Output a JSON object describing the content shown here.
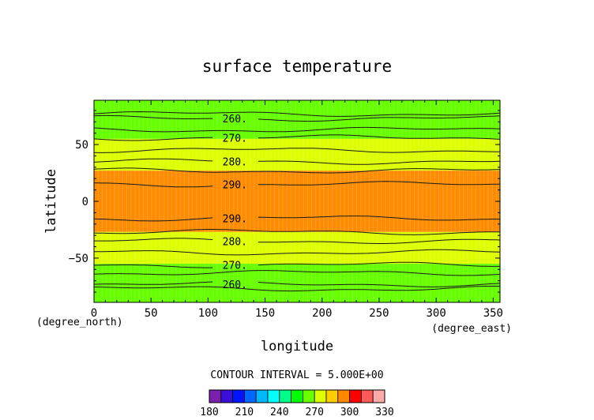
{
  "chart_data": {
    "type": "contour",
    "title": "surface temperature",
    "xlabel": "longitude",
    "ylabel": "latitude",
    "x_unit": "(degree_east)",
    "y_unit": "(degree_north)",
    "xlim": [
      0,
      356
    ],
    "ylim": [
      -89,
      89
    ],
    "x_ticks": [
      0,
      50,
      100,
      150,
      200,
      250,
      300,
      350
    ],
    "y_ticks": [
      -50,
      0,
      50
    ],
    "contour_interval_text": "CONTOUR INTERVAL = 5.000E+00",
    "colorbar": {
      "min": 180,
      "max": 330,
      "step": 10,
      "tick_labels": [
        "180",
        "210",
        "240",
        "270",
        "300",
        "330"
      ],
      "bins": [
        {
          "from": 180,
          "to": 190,
          "color": "#7a1fb0"
        },
        {
          "from": 190,
          "to": 200,
          "color": "#3c0fd8"
        },
        {
          "from": 200,
          "to": 210,
          "color": "#0014ff"
        },
        {
          "from": 210,
          "to": 220,
          "color": "#0068ff"
        },
        {
          "from": 220,
          "to": 230,
          "color": "#00b8ff"
        },
        {
          "from": 230,
          "to": 240,
          "color": "#00ffff"
        },
        {
          "from": 240,
          "to": 250,
          "color": "#00ff88"
        },
        {
          "from": 250,
          "to": 260,
          "color": "#00ff00"
        },
        {
          "from": 260,
          "to": 270,
          "color": "#6aff00"
        },
        {
          "from": 270,
          "to": 280,
          "color": "#ddff00"
        },
        {
          "from": 280,
          "to": 290,
          "color": "#ffcc00"
        },
        {
          "from": 290,
          "to": 300,
          "color": "#ff8800"
        },
        {
          "from": 300,
          "to": 310,
          "color": "#ff0000"
        },
        {
          "from": 310,
          "to": 320,
          "color": "#ff5a5a"
        },
        {
          "from": 320,
          "to": 330,
          "color": "#ffaaaa"
        }
      ]
    },
    "filled_bands": [
      {
        "lat_from": 55,
        "lat_to": 89,
        "level_range": [
          260,
          270
        ],
        "color": "#66ff00"
      },
      {
        "lat_from": 27,
        "lat_to": 55,
        "level_range": [
          270,
          290
        ],
        "color": "#ddff00"
      },
      {
        "lat_from": -27,
        "lat_to": 27,
        "level_range": [
          290,
          300
        ],
        "color": "#ff8c00"
      },
      {
        "lat_from": -55,
        "lat_to": -27,
        "level_range": [
          270,
          290
        ],
        "color": "#ddff00"
      },
      {
        "lat_from": -89,
        "lat_to": -55,
        "level_range": [
          260,
          270
        ],
        "color": "#66ff00"
      }
    ],
    "contours": [
      {
        "level": 255,
        "lat": 77,
        "label": ""
      },
      {
        "level": 260,
        "lat": 73,
        "label": "260."
      },
      {
        "level": 265,
        "lat": 63,
        "label": ""
      },
      {
        "level": 270,
        "lat": 56,
        "label": "270."
      },
      {
        "level": 275,
        "lat": 45,
        "label": ""
      },
      {
        "level": 280,
        "lat": 35,
        "label": "280."
      },
      {
        "level": 285,
        "lat": 27,
        "label": ""
      },
      {
        "level": 290,
        "lat": 15,
        "label": "290."
      },
      {
        "level": 290,
        "lat": -15,
        "label": "290."
      },
      {
        "level": 285,
        "lat": -27,
        "label": ""
      },
      {
        "level": 280,
        "lat": -35,
        "label": "280."
      },
      {
        "level": 275,
        "lat": -45,
        "label": ""
      },
      {
        "level": 270,
        "lat": -56,
        "label": "270."
      },
      {
        "level": 265,
        "lat": -63,
        "label": ""
      },
      {
        "level": 260,
        "lat": -73,
        "label": "260."
      },
      {
        "level": 255,
        "lat": -77,
        "label": ""
      }
    ]
  }
}
